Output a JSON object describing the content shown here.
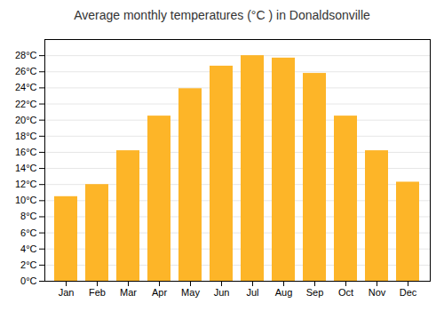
{
  "chart_data": {
    "type": "bar",
    "title": "Average monthly temperatures (°C ) in Donaldsonville",
    "categories": [
      "Jan",
      "Feb",
      "Mar",
      "Apr",
      "May",
      "Jun",
      "Jul",
      "Aug",
      "Sep",
      "Oct",
      "Nov",
      "Dec"
    ],
    "values": [
      10.5,
      12.0,
      16.2,
      20.5,
      23.9,
      26.7,
      28.0,
      27.7,
      25.8,
      20.5,
      16.2,
      12.3
    ],
    "color": "#FDB528",
    "ylim": [
      0,
      30
    ],
    "yticks": [
      {
        "value": 0,
        "label": "0°C"
      },
      {
        "value": 2,
        "label": "2°C"
      },
      {
        "value": 4,
        "label": "4°C"
      },
      {
        "value": 6,
        "label": "6°C"
      },
      {
        "value": 8,
        "label": "8°C"
      },
      {
        "value": 10,
        "label": "10°C"
      },
      {
        "value": 12,
        "label": "12°C"
      },
      {
        "value": 14,
        "label": "14°C"
      },
      {
        "value": 16,
        "label": "16°C"
      },
      {
        "value": 18,
        "label": "18°C"
      },
      {
        "value": 20,
        "label": "20°C"
      },
      {
        "value": 22,
        "label": "22°C"
      },
      {
        "value": 24,
        "label": "24°C"
      },
      {
        "value": 26,
        "label": "26°C"
      },
      {
        "value": 28,
        "label": "28°C"
      }
    ],
    "grid": true
  }
}
